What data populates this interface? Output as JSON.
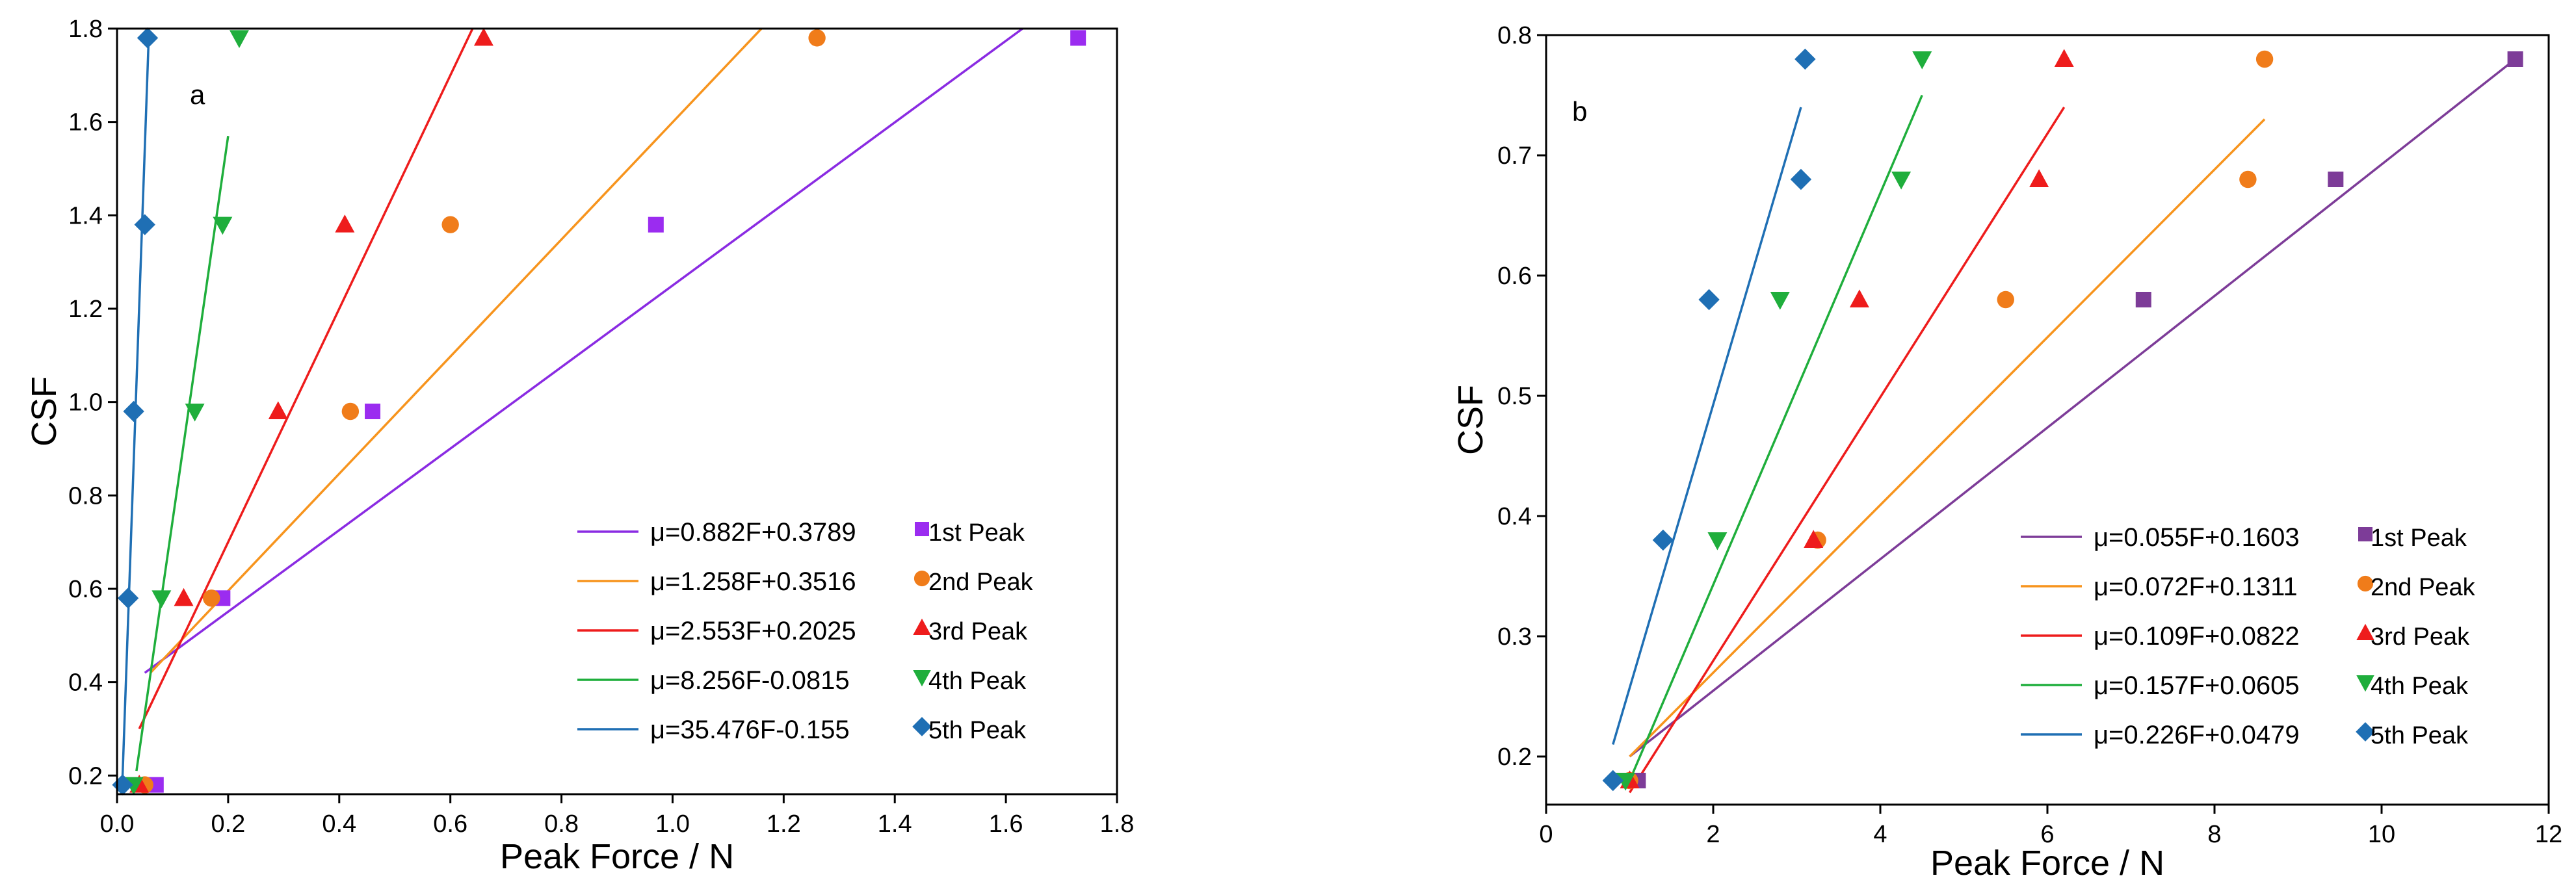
{
  "chart_data": [
    {
      "type": "scatter",
      "panel": "a",
      "xlabel": "Peak Force / N",
      "ylabel": "CSF",
      "xlim": [
        0,
        1.8
      ],
      "ylim": [
        0.16,
        1.8
      ],
      "xticks": [
        0,
        0.2,
        0.4,
        0.6,
        0.8,
        1.0,
        1.2,
        1.4,
        1.6,
        1.8
      ],
      "xtick_labels": [
        "0.0",
        "0.2",
        "0.4",
        "0.6",
        "0.8",
        "1.0",
        "1.2",
        "1.4",
        "1.6",
        "1.8"
      ],
      "yticks": [
        0.2,
        0.4,
        0.6,
        0.8,
        1.0,
        1.2,
        1.4,
        1.6,
        1.8
      ],
      "ytick_labels": [
        "0.2",
        "0.4",
        "0.6",
        "0.8",
        "1.0",
        "1.2",
        "1.4",
        "1.6",
        "1.8"
      ],
      "series": [
        {
          "name": "1st Peak",
          "marker": "square",
          "color": "#9b2cf0",
          "x": [
            0.07,
            0.19,
            0.46,
            0.97,
            1.73
          ],
          "y": [
            0.18,
            0.58,
            0.98,
            1.38,
            1.78
          ],
          "fit": {
            "label": "μ=0.882F+0.3789",
            "color": "#8a2be2",
            "x": [
              0.05,
              1.63
            ],
            "y": [
              0.42,
              1.8
            ]
          }
        },
        {
          "name": "2nd Peak",
          "marker": "circle",
          "color": "#f07c1a",
          "x": [
            0.05,
            0.17,
            0.42,
            0.6,
            1.26
          ],
          "y": [
            0.18,
            0.58,
            0.98,
            1.38,
            1.78
          ],
          "fit": {
            "label": "μ=1.258F+0.3516",
            "color": "#f7941d",
            "x": [
              0.06,
              1.16
            ],
            "y": [
              0.42,
              1.8
            ]
          }
        },
        {
          "name": "3rd Peak",
          "marker": "triangle-up",
          "color": "#ee1c1c",
          "x": [
            0.04,
            0.12,
            0.29,
            0.41,
            0.66
          ],
          "y": [
            0.18,
            0.58,
            0.98,
            1.38,
            1.78
          ],
          "fit": {
            "label": "μ=2.553F+0.2025",
            "color": "#ee1c1c",
            "x": [
              0.04,
              0.64
            ],
            "y": [
              0.3,
              1.8
            ]
          }
        },
        {
          "name": "4th Peak",
          "marker": "triangle-down",
          "color": "#1fae3c",
          "x": [
            0.03,
            0.08,
            0.14,
            0.19,
            0.22
          ],
          "y": [
            0.18,
            0.58,
            0.98,
            1.38,
            1.78
          ],
          "fit": {
            "label": "μ=8.256F-0.0815",
            "color": "#1fae3c",
            "x": [
              0.035,
              0.2
            ],
            "y": [
              0.21,
              1.57
            ]
          }
        },
        {
          "name": "5th Peak",
          "marker": "diamond",
          "color": "#1f6fb4",
          "x": [
            0.01,
            0.02,
            0.03,
            0.05,
            0.055
          ],
          "y": [
            0.18,
            0.58,
            0.98,
            1.38,
            1.78
          ],
          "fit": {
            "label": "μ=35.476F-0.155",
            "color": "#1f6fb4",
            "x": [
              0.01,
              0.057
            ],
            "y": [
              0.2,
              1.78
            ]
          }
        }
      ],
      "legend_position": "bottom-right"
    },
    {
      "type": "scatter",
      "panel": "b",
      "xlabel": "Peak Force / N",
      "ylabel": "CSF",
      "xlim": [
        0,
        12
      ],
      "ylim": [
        0.16,
        0.8
      ],
      "xticks": [
        0,
        2,
        4,
        6,
        8,
        10,
        12
      ],
      "xtick_labels": [
        "0",
        "2",
        "4",
        "6",
        "8",
        "10",
        "12"
      ],
      "yticks": [
        0.2,
        0.3,
        0.4,
        0.5,
        0.6,
        0.7,
        0.8
      ],
      "ytick_labels": [
        "0.2",
        "0.3",
        "0.4",
        "0.5",
        "0.6",
        "0.7",
        "0.8"
      ],
      "series": [
        {
          "name": "1st Peak",
          "marker": "square",
          "color": "#7d3c98",
          "x": [
            1.1,
            7.15,
            9.45,
            11.6
          ],
          "y": [
            0.18,
            0.58,
            0.68,
            0.78
          ],
          "fit": {
            "label": "μ=0.055F+0.1603",
            "color": "#7d3c98",
            "x": [
              1.0,
              11.6
            ],
            "y": [
              0.2,
              0.78
            ]
          }
        },
        {
          "name": "2nd Peak",
          "marker": "circle",
          "color": "#f07c1a",
          "x": [
            1.0,
            3.25,
            5.5,
            8.4,
            8.6
          ],
          "y": [
            0.18,
            0.38,
            0.58,
            0.68,
            0.78
          ],
          "fit": {
            "label": "μ=0.072F+0.1311",
            "color": "#f7941d",
            "x": [
              1.0,
              8.6
            ],
            "y": [
              0.2,
              0.73
            ]
          }
        },
        {
          "name": "3rd Peak",
          "marker": "triangle-up",
          "color": "#ee1c1c",
          "x": [
            1.0,
            3.2,
            3.75,
            5.9,
            6.2
          ],
          "y": [
            0.18,
            0.38,
            0.58,
            0.68,
            0.78
          ],
          "fit": {
            "label": "μ=0.109F+0.0822",
            "color": "#ee1c1c",
            "x": [
              1.0,
              6.2
            ],
            "y": [
              0.17,
              0.74
            ]
          }
        },
        {
          "name": "4th Peak",
          "marker": "triangle-down",
          "color": "#1fae3c",
          "x": [
            0.95,
            2.05,
            2.8,
            4.25,
            4.5
          ],
          "y": [
            0.18,
            0.38,
            0.58,
            0.68,
            0.78
          ],
          "fit": {
            "label": "μ=0.157F+0.0605",
            "color": "#1fae3c",
            "x": [
              1.0,
              4.5
            ],
            "y": [
              0.18,
              0.75
            ]
          }
        },
        {
          "name": "5th Peak",
          "marker": "diamond",
          "color": "#1f6fb4",
          "x": [
            0.8,
            1.4,
            1.95,
            3.05,
            3.1
          ],
          "y": [
            0.18,
            0.38,
            0.58,
            0.68,
            0.78
          ],
          "fit": {
            "label": "μ=0.226F+0.0479",
            "color": "#1f6fb4",
            "x": [
              0.8,
              3.05
            ],
            "y": [
              0.21,
              0.74
            ]
          }
        }
      ],
      "legend_position": "bottom-right"
    }
  ]
}
